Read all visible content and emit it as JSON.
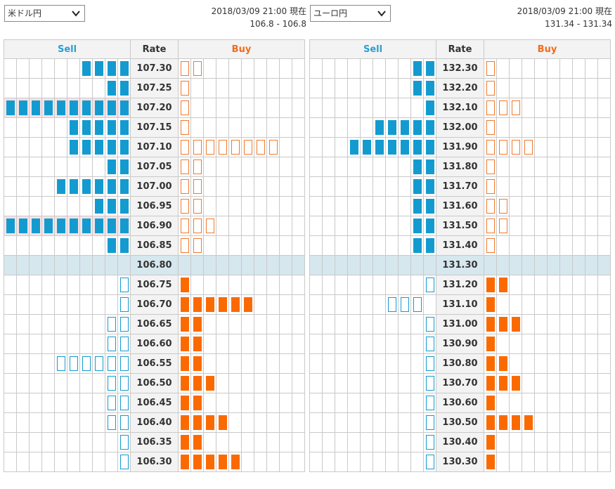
{
  "panels": [
    {
      "currency": "米ドル円",
      "timestamp": "2018/03/09 21:00 現在",
      "range": "106.8 - 106.8",
      "headers": {
        "sell": "Sell",
        "rate": "Rate",
        "buy": "Buy"
      },
      "current_rate": "106.80",
      "rows": [
        {
          "rate": "107.30",
          "sell": 4,
          "sell_style": "filled",
          "buy": 2,
          "buy_style": "outline",
          "highlight": false
        },
        {
          "rate": "107.25",
          "sell": 2,
          "sell_style": "filled",
          "buy": 1,
          "buy_style": "outline",
          "highlight": false
        },
        {
          "rate": "107.20",
          "sell": 10,
          "sell_style": "filled",
          "buy": 1,
          "buy_style": "outline",
          "highlight": true
        },
        {
          "rate": "107.15",
          "sell": 5,
          "sell_style": "filled",
          "buy": 1,
          "buy_style": "outline",
          "highlight": false
        },
        {
          "rate": "107.10",
          "sell": 5,
          "sell_style": "filled",
          "buy": 8,
          "buy_style": "outline",
          "highlight": false
        },
        {
          "rate": "107.05",
          "sell": 2,
          "sell_style": "filled",
          "buy": 2,
          "buy_style": "outline",
          "highlight": false
        },
        {
          "rate": "107.00",
          "sell": 6,
          "sell_style": "filled",
          "buy": 2,
          "buy_style": "outline",
          "highlight": false
        },
        {
          "rate": "106.95",
          "sell": 3,
          "sell_style": "filled",
          "buy": 2,
          "buy_style": "outline",
          "highlight": false
        },
        {
          "rate": "106.90",
          "sell": 10,
          "sell_style": "filled",
          "buy": 3,
          "buy_style": "outline",
          "highlight": true
        },
        {
          "rate": "106.85",
          "sell": 2,
          "sell_style": "filled",
          "buy": 2,
          "buy_style": "outline",
          "highlight": false
        },
        {
          "rate": "106.80",
          "sell": 0,
          "sell_style": "none",
          "buy": 0,
          "buy_style": "none",
          "highlight": false,
          "current": true
        },
        {
          "rate": "106.75",
          "sell": 1,
          "sell_style": "outline",
          "buy": 1,
          "buy_style": "filled",
          "highlight": false
        },
        {
          "rate": "106.70",
          "sell": 1,
          "sell_style": "outline",
          "buy": 6,
          "buy_style": "filled",
          "highlight": false
        },
        {
          "rate": "106.65",
          "sell": 2,
          "sell_style": "outline",
          "buy": 2,
          "buy_style": "filled",
          "highlight": false
        },
        {
          "rate": "106.60",
          "sell": 2,
          "sell_style": "outline",
          "buy": 2,
          "buy_style": "filled",
          "highlight": false
        },
        {
          "rate": "106.55",
          "sell": 6,
          "sell_style": "outline",
          "buy": 2,
          "buy_style": "filled",
          "highlight": false
        },
        {
          "rate": "106.50",
          "sell": 2,
          "sell_style": "outline",
          "buy": 3,
          "buy_style": "filled",
          "highlight": false
        },
        {
          "rate": "106.45",
          "sell": 2,
          "sell_style": "outline",
          "buy": 2,
          "buy_style": "filled",
          "highlight": false
        },
        {
          "rate": "106.40",
          "sell": 2,
          "sell_style": "outline",
          "buy": 4,
          "buy_style": "filled",
          "highlight": false
        },
        {
          "rate": "106.35",
          "sell": 1,
          "sell_style": "outline",
          "buy": 2,
          "buy_style": "filled",
          "highlight": false
        },
        {
          "rate": "106.30",
          "sell": 1,
          "sell_style": "outline",
          "buy": 5,
          "buy_style": "filled",
          "highlight": false
        }
      ]
    },
    {
      "currency": "ユーロ円",
      "timestamp": "2018/03/09 21:00 現在",
      "range": "131.34 - 131.34",
      "headers": {
        "sell": "Sell",
        "rate": "Rate",
        "buy": "Buy"
      },
      "current_rate": "131.30",
      "rows": [
        {
          "rate": "132.30",
          "sell": 2,
          "sell_style": "filled",
          "buy": 1,
          "buy_style": "outline",
          "highlight": false
        },
        {
          "rate": "132.20",
          "sell": 2,
          "sell_style": "filled",
          "buy": 1,
          "buy_style": "outline",
          "highlight": false
        },
        {
          "rate": "132.10",
          "sell": 1,
          "sell_style": "filled",
          "buy": 3,
          "buy_style": "outline",
          "highlight": false
        },
        {
          "rate": "132.00",
          "sell": 5,
          "sell_style": "filled",
          "buy": 1,
          "buy_style": "outline",
          "highlight": false
        },
        {
          "rate": "131.90",
          "sell": 7,
          "sell_style": "filled",
          "buy": 4,
          "buy_style": "outline",
          "highlight": false
        },
        {
          "rate": "131.80",
          "sell": 2,
          "sell_style": "filled",
          "buy": 1,
          "buy_style": "outline",
          "highlight": false
        },
        {
          "rate": "131.70",
          "sell": 2,
          "sell_style": "filled",
          "buy": 1,
          "buy_style": "outline",
          "highlight": false
        },
        {
          "rate": "131.60",
          "sell": 2,
          "sell_style": "filled",
          "buy": 2,
          "buy_style": "outline",
          "highlight": false
        },
        {
          "rate": "131.50",
          "sell": 2,
          "sell_style": "filled",
          "buy": 2,
          "buy_style": "outline",
          "highlight": false
        },
        {
          "rate": "131.40",
          "sell": 2,
          "sell_style": "filled",
          "buy": 1,
          "buy_style": "outline",
          "highlight": false
        },
        {
          "rate": "131.30",
          "sell": 0,
          "sell_style": "none",
          "buy": 0,
          "buy_style": "none",
          "highlight": false,
          "current": true
        },
        {
          "rate": "131.20",
          "sell": 1,
          "sell_style": "outline",
          "buy": 2,
          "buy_style": "filled",
          "highlight": false
        },
        {
          "rate": "131.10",
          "sell": 3,
          "sell_style": "outline",
          "buy": 1,
          "buy_style": "filled",
          "highlight": false,
          "sell_gap": 1
        },
        {
          "rate": "131.00",
          "sell": 1,
          "sell_style": "outline",
          "buy": 3,
          "buy_style": "filled",
          "highlight": false
        },
        {
          "rate": "130.90",
          "sell": 1,
          "sell_style": "outline",
          "buy": 1,
          "buy_style": "filled",
          "highlight": false
        },
        {
          "rate": "130.80",
          "sell": 1,
          "sell_style": "outline",
          "buy": 2,
          "buy_style": "filled",
          "highlight": false
        },
        {
          "rate": "130.70",
          "sell": 1,
          "sell_style": "outline",
          "buy": 3,
          "buy_style": "filled",
          "highlight": false
        },
        {
          "rate": "130.60",
          "sell": 1,
          "sell_style": "outline",
          "buy": 1,
          "buy_style": "filled",
          "highlight": false
        },
        {
          "rate": "130.50",
          "sell": 1,
          "sell_style": "outline",
          "buy": 4,
          "buy_style": "filled",
          "highlight": false
        },
        {
          "rate": "130.40",
          "sell": 1,
          "sell_style": "outline",
          "buy": 1,
          "buy_style": "filled",
          "highlight": false
        },
        {
          "rate": "130.30",
          "sell": 1,
          "sell_style": "outline",
          "buy": 1,
          "buy_style": "filled",
          "highlight": false
        }
      ]
    }
  ],
  "colors": {
    "sell_blue": "#139bd0",
    "buy_orange": "#fb6a00",
    "current_row_bg": "#d6e7ee",
    "highlight_bg": "#f7e3e6"
  },
  "icons": {
    "dropdown": "chevron-down-icon"
  }
}
